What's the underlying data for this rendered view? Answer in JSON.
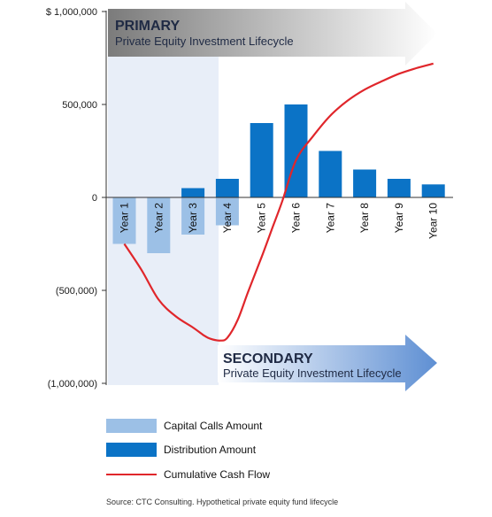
{
  "colors": {
    "capital_calls": "#9cc0e6",
    "distributions": "#0b73c6",
    "cumulative": "#e0262b",
    "axis": "#333333",
    "primary_shade": "#e8eef8",
    "banner_dark": "#7b7b7b",
    "banner_light": "#ffffff",
    "secondary_dark": "#ffffff",
    "secondary_light": "#5e8fd3"
  },
  "chart_data": {
    "type": "bar",
    "categories": [
      "Year 1",
      "Year 2",
      "Year 3",
      "Year 4",
      "Year 5",
      "Year 6",
      "Year 7",
      "Year 8",
      "Year 9",
      "Year 10"
    ],
    "series": [
      {
        "name": "Capital Calls Amount",
        "values": [
          -250000,
          -300000,
          -200000,
          -150000,
          0,
          0,
          0,
          0,
          0,
          0
        ]
      },
      {
        "name": "Distribution Amount",
        "values": [
          0,
          0,
          50000,
          100000,
          400000,
          500000,
          250000,
          150000,
          100000,
          70000
        ]
      },
      {
        "name": "Cumulative Cash Flow",
        "type": "line",
        "x": [
          1,
          1.5,
          2,
          2.5,
          3,
          3.3,
          3.5,
          3.8,
          4,
          4.3,
          4.6,
          5,
          5.3,
          5.6,
          6,
          6.5,
          7,
          7.5,
          8,
          8.5,
          9,
          9.5,
          10
        ],
        "values": [
          -250000,
          -390000,
          -550000,
          -640000,
          -700000,
          -740000,
          -760000,
          -770000,
          -755000,
          -660000,
          -510000,
          -320000,
          -170000,
          -20000,
          200000,
          330000,
          440000,
          520000,
          580000,
          625000,
          665000,
          695000,
          720000
        ]
      }
    ],
    "ylim": [
      -1000000,
      1000000
    ],
    "yticks": [
      -1000000,
      -500000,
      0,
      500000,
      1000000
    ],
    "ytick_labels": [
      "(1,000,000)",
      "(500,000)",
      "0",
      "500,000",
      "$ 1,000,000"
    ],
    "xlabel": "",
    "ylabel": "",
    "grid": false,
    "legend_position": "bottom-left",
    "primary_region": [
      1,
      3
    ],
    "annotations": [
      {
        "title": "PRIMARY",
        "text": "Private Equity Investment Lifecycle",
        "position": "top"
      },
      {
        "title": "SECONDARY",
        "text": "Private Equity Investment Lifecycle",
        "position": "bottom-right"
      }
    ]
  },
  "banners": {
    "primary_title": "PRIMARY",
    "primary_sub": "Private Equity Investment Lifecycle",
    "secondary_title": "SECONDARY",
    "secondary_sub": "Private Equity Investment Lifecycle"
  },
  "legend": {
    "capital_calls": "Capital Calls Amount",
    "distributions": "Distribution Amount",
    "cumulative": "Cumulative Cash Flow"
  },
  "source": "Source: CTC Consulting. Hypothetical private equity fund lifecycle"
}
